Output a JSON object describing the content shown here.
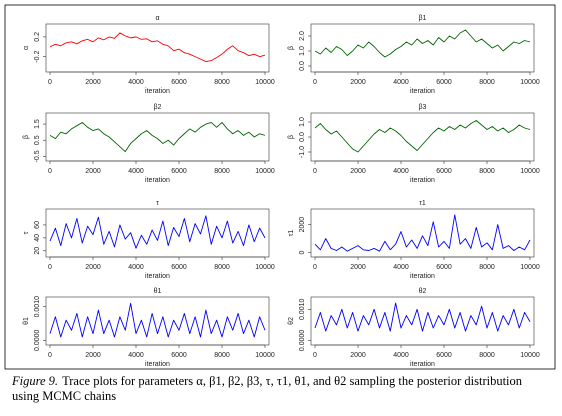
{
  "chart_data": [
    {
      "type": "line",
      "title": "α",
      "ylabel": "α",
      "xlabel": "iteration",
      "color": "#ff0000",
      "x": [
        0,
        250,
        500,
        750,
        1000,
        1250,
        1500,
        1750,
        2000,
        2250,
        2500,
        2750,
        3000,
        3250,
        3500,
        3750,
        4000,
        4250,
        4500,
        4750,
        5000,
        5250,
        5500,
        5750,
        6000,
        6250,
        6500,
        6750,
        7000,
        7250,
        7500,
        7750,
        8000,
        8250,
        8500,
        8750,
        9000,
        9250,
        9500,
        9750,
        10000
      ],
      "values": [
        0.0,
        0.05,
        0.02,
        0.08,
        0.1,
        0.06,
        0.12,
        0.15,
        0.1,
        0.18,
        0.14,
        0.2,
        0.17,
        0.28,
        0.22,
        0.18,
        0.2,
        0.15,
        0.16,
        0.1,
        0.12,
        0.05,
        0.02,
        -0.08,
        -0.05,
        -0.12,
        -0.15,
        -0.2,
        -0.25,
        -0.3,
        -0.28,
        -0.22,
        -0.15,
        -0.05,
        0.02,
        -0.08,
        -0.12,
        -0.18,
        -0.15,
        -0.2,
        -0.17
      ],
      "xlim": [
        0,
        10000
      ],
      "xticks": [
        0,
        2000,
        4000,
        6000,
        8000,
        10000
      ],
      "ylim": [
        -0.45,
        0.4
      ],
      "yticks": [
        -0.2,
        0.2
      ]
    },
    {
      "type": "line",
      "title": "β1",
      "ylabel": "β",
      "xlabel": "iteration",
      "color": "#006400",
      "x": [
        0,
        250,
        500,
        750,
        1000,
        1250,
        1500,
        1750,
        2000,
        2250,
        2500,
        2750,
        3000,
        3250,
        3500,
        3750,
        4000,
        4250,
        4500,
        4750,
        5000,
        5250,
        5500,
        5750,
        6000,
        6250,
        6500,
        6750,
        7000,
        7250,
        7500,
        7750,
        8000,
        8250,
        8500,
        8750,
        9000,
        9250,
        9500,
        9750,
        10000
      ],
      "values": [
        1.0,
        0.8,
        1.2,
        0.9,
        1.3,
        1.1,
        0.7,
        1.0,
        1.4,
        1.2,
        1.6,
        1.3,
        0.9,
        0.6,
        0.8,
        1.1,
        1.3,
        1.6,
        1.4,
        1.8,
        1.5,
        1.7,
        1.4,
        1.9,
        1.6,
        2.0,
        1.8,
        2.2,
        2.4,
        2.0,
        1.6,
        1.8,
        1.5,
        1.2,
        1.4,
        1.0,
        1.3,
        1.6,
        1.5,
        1.7,
        1.6
      ],
      "xlim": [
        0,
        10000
      ],
      "xticks": [
        0,
        2000,
        4000,
        6000,
        8000,
        10000
      ],
      "ylim": [
        -0.2,
        2.6
      ],
      "yticks": [
        {
          "value": 0,
          "label": "0.0"
        },
        {
          "value": 1,
          "label": "1.0"
        },
        {
          "value": 2,
          "label": "2.0"
        }
      ]
    },
    {
      "type": "line",
      "title": "β2",
      "ylabel": "β",
      "xlabel": "iteration",
      "color": "#006400",
      "x": [
        0,
        250,
        500,
        750,
        1000,
        1250,
        1500,
        1750,
        2000,
        2250,
        2500,
        2750,
        3000,
        3250,
        3500,
        3750,
        4000,
        4250,
        4500,
        4750,
        5000,
        5250,
        5500,
        5750,
        6000,
        6250,
        6500,
        6750,
        7000,
        7250,
        7500,
        7750,
        8000,
        8250,
        8500,
        8750,
        9000,
        9250,
        9500,
        9750,
        10000
      ],
      "values": [
        0.8,
        0.6,
        1.0,
        0.9,
        1.2,
        1.4,
        1.6,
        1.3,
        1.1,
        1.2,
        0.9,
        0.7,
        0.4,
        0.1,
        -0.2,
        0.3,
        0.6,
        0.9,
        1.1,
        0.8,
        0.6,
        0.3,
        0.5,
        0.2,
        0.6,
        0.9,
        1.2,
        1.0,
        1.3,
        1.5,
        1.6,
        1.3,
        1.6,
        1.2,
        0.9,
        1.1,
        0.8,
        1.0,
        0.7,
        0.9,
        0.8
      ],
      "xlim": [
        0,
        10000
      ],
      "xticks": [
        0,
        2000,
        4000,
        6000,
        8000,
        10000
      ],
      "ylim": [
        -0.6,
        2.0
      ],
      "yticks": [
        -0.5,
        0.5,
        1.5
      ]
    },
    {
      "type": "line",
      "title": "β3",
      "ylabel": "β",
      "xlabel": "iteration",
      "color": "#006400",
      "x": [
        0,
        250,
        500,
        750,
        1000,
        1250,
        1500,
        1750,
        2000,
        2250,
        2500,
        2750,
        3000,
        3250,
        3500,
        3750,
        4000,
        4250,
        4500,
        4750,
        5000,
        5250,
        5500,
        5750,
        6000,
        6250,
        6500,
        6750,
        7000,
        7250,
        7500,
        7750,
        8000,
        8250,
        8500,
        8750,
        9000,
        9250,
        9500,
        9750,
        10000
      ],
      "values": [
        0.6,
        0.9,
        0.5,
        0.2,
        0.4,
        0.0,
        -0.4,
        -0.8,
        -1.0,
        -0.6,
        -0.2,
        0.2,
        0.5,
        0.3,
        0.6,
        0.4,
        0.1,
        -0.3,
        -0.6,
        -0.9,
        -0.5,
        -0.1,
        0.3,
        0.6,
        0.4,
        0.7,
        0.5,
        0.8,
        0.6,
        0.9,
        1.1,
        0.8,
        0.5,
        0.7,
        0.4,
        0.6,
        0.3,
        0.5,
        0.8,
        0.6,
        0.5
      ],
      "xlim": [
        0,
        10000
      ],
      "xticks": [
        0,
        2000,
        4000,
        6000,
        8000,
        10000
      ],
      "ylim": [
        -1.4,
        1.4
      ],
      "yticks": [
        {
          "value": -1,
          "label": "-1.0"
        },
        {
          "value": 0,
          "label": "0.0"
        },
        {
          "value": 1,
          "label": "1.0"
        }
      ]
    },
    {
      "type": "line",
      "title": "τ",
      "ylabel": "τ",
      "xlabel": "iteration",
      "color": "#0000ff",
      "x": [
        0,
        250,
        500,
        750,
        1000,
        1250,
        1500,
        1750,
        2000,
        2250,
        2500,
        2750,
        3000,
        3250,
        3500,
        3750,
        4000,
        4250,
        4500,
        4750,
        5000,
        5250,
        5500,
        5750,
        6000,
        6250,
        6500,
        6750,
        7000,
        7250,
        7500,
        7750,
        8000,
        8250,
        8500,
        8750,
        9000,
        9250,
        9500,
        9750,
        10000
      ],
      "values": [
        35,
        55,
        28,
        62,
        40,
        70,
        32,
        58,
        45,
        72,
        30,
        50,
        26,
        60,
        38,
        48,
        24,
        44,
        30,
        52,
        36,
        66,
        28,
        56,
        42,
        70,
        34,
        62,
        46,
        74,
        30,
        58,
        40,
        66,
        32,
        50,
        28,
        60,
        34,
        55,
        40
      ],
      "xlim": [
        0,
        10000
      ],
      "xticks": [
        0,
        2000,
        4000,
        6000,
        8000,
        10000
      ],
      "ylim": [
        15,
        80
      ],
      "yticks": [
        20,
        40,
        60
      ]
    },
    {
      "type": "line",
      "title": "τ1",
      "ylabel": "τ1",
      "xlabel": "iteration",
      "color": "#0000ff",
      "x": [
        0,
        250,
        500,
        750,
        1000,
        1250,
        1500,
        1750,
        2000,
        2250,
        2500,
        2750,
        3000,
        3250,
        3500,
        3750,
        4000,
        4250,
        4500,
        4750,
        5000,
        5250,
        5500,
        5750,
        6000,
        6250,
        6500,
        6750,
        7000,
        7250,
        7500,
        7750,
        8000,
        8250,
        8500,
        8750,
        9000,
        9250,
        9500,
        9750,
        10000
      ],
      "values": [
        600,
        200,
        1000,
        300,
        150,
        400,
        100,
        300,
        500,
        200,
        150,
        300,
        100,
        800,
        200,
        600,
        1500,
        400,
        900,
        300,
        1200,
        500,
        2200,
        400,
        800,
        300,
        2700,
        600,
        1000,
        300,
        1800,
        400,
        700,
        200,
        2000,
        300,
        500,
        150,
        400,
        200,
        900
      ],
      "xlim": [
        0,
        10000
      ],
      "xticks": [
        0,
        2000,
        4000,
        6000,
        8000,
        10000
      ],
      "ylim": [
        -100,
        2900
      ],
      "yticks": [
        0,
        2000
      ]
    },
    {
      "type": "line",
      "title": "θ1",
      "ylabel": "θ1",
      "xlabel": "iteration",
      "color": "#0000ff",
      "x": [
        0,
        250,
        500,
        750,
        1000,
        1250,
        1500,
        1750,
        2000,
        2250,
        2500,
        2750,
        3000,
        3250,
        3500,
        3750,
        4000,
        4250,
        4500,
        4750,
        5000,
        5250,
        5500,
        5750,
        6000,
        6250,
        6500,
        6750,
        7000,
        7250,
        7500,
        7750,
        8000,
        8250,
        8500,
        8750,
        9000,
        9250,
        9500,
        9750,
        10000
      ],
      "values": [
        0.0002,
        0.0007,
        0.0001,
        0.0006,
        0.0003,
        0.0008,
        0.0001,
        0.0007,
        0.0002,
        0.0009,
        0.0002,
        0.0006,
        0.0001,
        0.0007,
        0.0003,
        0.0011,
        0.0002,
        0.0006,
        0.0001,
        0.0008,
        0.0002,
        0.0007,
        0.0001,
        0.0006,
        0.0003,
        0.0008,
        0.0002,
        0.0007,
        0.0001,
        0.0009,
        0.0002,
        0.0006,
        0.0001,
        0.0007,
        0.0003,
        0.0008,
        0.0002,
        0.0006,
        0.0001,
        0.0007,
        0.0003
      ],
      "xlim": [
        0,
        10000
      ],
      "xticks": [
        0,
        2000,
        4000,
        6000,
        8000,
        10000
      ],
      "ylim": [
        -5e-05,
        0.0012
      ],
      "yticks": [
        {
          "value": 0,
          "label": "0.0000"
        },
        {
          "value": 0.001,
          "label": "0.0010"
        }
      ]
    },
    {
      "type": "line",
      "title": "θ2",
      "ylabel": "θ2",
      "xlabel": "iteration",
      "color": "#0000ff",
      "x": [
        0,
        250,
        500,
        750,
        1000,
        1250,
        1500,
        1750,
        2000,
        2250,
        2500,
        2750,
        3000,
        3250,
        3500,
        3750,
        4000,
        4250,
        4500,
        4750,
        5000,
        5250,
        5500,
        5750,
        6000,
        6250,
        6500,
        6750,
        7000,
        7250,
        7500,
        7750,
        8000,
        8250,
        8500,
        8750,
        9000,
        9250,
        9500,
        9750,
        10000
      ],
      "values": [
        0.0004,
        0.0009,
        0.0003,
        0.0008,
        0.0005,
        0.001,
        0.0004,
        0.0009,
        0.0003,
        0.0008,
        0.0005,
        0.001,
        0.0004,
        0.0009,
        0.0003,
        0.0012,
        0.0004,
        0.0008,
        0.0005,
        0.001,
        0.0003,
        0.0009,
        0.0004,
        0.0008,
        0.0005,
        0.001,
        0.0004,
        0.0009,
        0.0003,
        0.0008,
        0.0005,
        0.0011,
        0.0004,
        0.0009,
        0.0003,
        0.0008,
        0.0005,
        0.001,
        0.0004,
        0.0009,
        0.0006
      ],
      "xlim": [
        0,
        10000
      ],
      "xticks": [
        0,
        2000,
        4000,
        6000,
        8000,
        10000
      ],
      "ylim": [
        -5e-05,
        0.0013
      ],
      "yticks": [
        {
          "value": 0,
          "label": "0.0000"
        },
        {
          "value": 0.001,
          "label": "0.0010"
        }
      ]
    }
  ],
  "caption": {
    "label": "Figure 9.",
    "text": "Trace plots for parameters α, β1, β2, β3, τ, τ1, θ1, and θ2 sampling the posterior distribution using MCMC chains"
  }
}
